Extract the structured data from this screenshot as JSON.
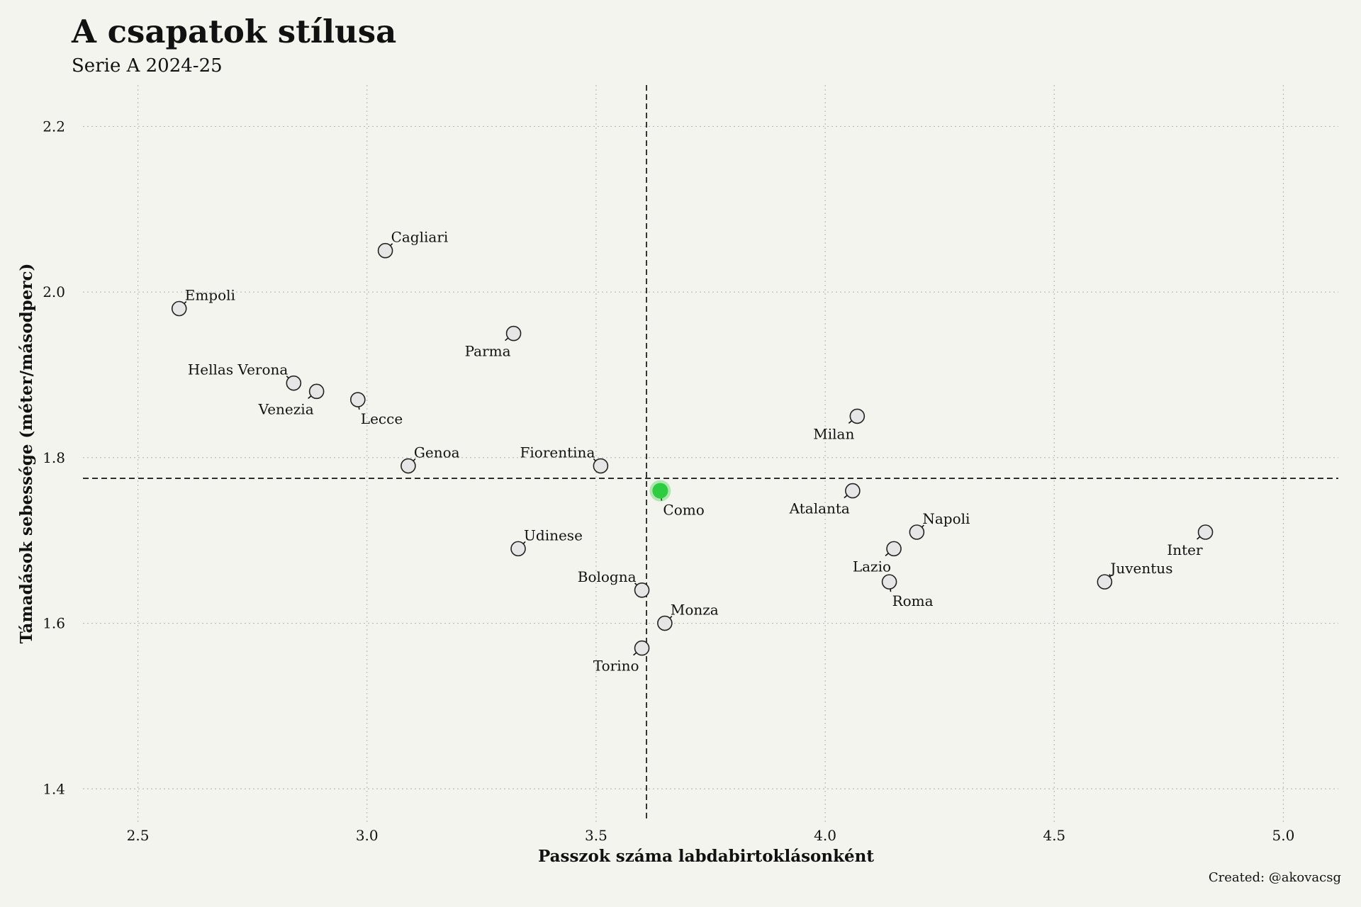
{
  "header": {
    "title": "A csapatok stílusa",
    "subtitle": "Serie A 2024-25"
  },
  "footer": {
    "credit": "Created: @akovacsg"
  },
  "colors": {
    "background": "#f4f4ef",
    "point_fill": "#e6e6e6",
    "point_stroke": "#222222",
    "highlight": "#2ecc40",
    "grid": "#bbbbbb"
  },
  "chart_data": {
    "type": "scatter",
    "title": "A csapatok stílusa",
    "subtitle": "Serie A 2024-25",
    "xlabel": "Passzok száma labdabirtoklásonként",
    "ylabel": "Támadások sebessége (méter/másodperc)",
    "xlim": [
      2.38,
      5.12
    ],
    "ylim": [
      1.36,
      2.25
    ],
    "xticks": [
      "2.5",
      "3.0",
      "3.5",
      "4.0",
      "4.5",
      "5.0"
    ],
    "yticks": [
      "1.4",
      "1.6",
      "1.8",
      "2.0",
      "2.2"
    ],
    "grid": true,
    "reference_lines": {
      "x_mean": 3.61,
      "y_mean": 1.775
    },
    "highlight": "Como",
    "points": [
      {
        "team": "Empoli",
        "x": 2.59,
        "y": 1.98,
        "label_pos": "ne"
      },
      {
        "team": "Cagliari",
        "x": 3.04,
        "y": 2.05,
        "label_pos": "ne"
      },
      {
        "team": "Parma",
        "x": 3.32,
        "y": 1.95,
        "label_pos": "sw"
      },
      {
        "team": "Hellas Verona",
        "x": 2.84,
        "y": 1.89,
        "label_pos": "nw"
      },
      {
        "team": "Venezia",
        "x": 2.89,
        "y": 1.88,
        "label_pos": "sw"
      },
      {
        "team": "Lecce",
        "x": 2.98,
        "y": 1.87,
        "label_pos": "se"
      },
      {
        "team": "Genoa",
        "x": 3.09,
        "y": 1.79,
        "label_pos": "ne"
      },
      {
        "team": "Fiorentina",
        "x": 3.51,
        "y": 1.79,
        "label_pos": "nw"
      },
      {
        "team": "Udinese",
        "x": 3.33,
        "y": 1.69,
        "label_pos": "ne"
      },
      {
        "team": "Bologna",
        "x": 3.6,
        "y": 1.64,
        "label_pos": "nw"
      },
      {
        "team": "Monza",
        "x": 3.65,
        "y": 1.6,
        "label_pos": "ne"
      },
      {
        "team": "Torino",
        "x": 3.6,
        "y": 1.57,
        "label_pos": "sw"
      },
      {
        "team": "Como",
        "x": 3.64,
        "y": 1.76,
        "label_pos": "se"
      },
      {
        "team": "Milan",
        "x": 4.07,
        "y": 1.85,
        "label_pos": "sw"
      },
      {
        "team": "Atalanta",
        "x": 4.06,
        "y": 1.76,
        "label_pos": "sw"
      },
      {
        "team": "Napoli",
        "x": 4.2,
        "y": 1.71,
        "label_pos": "ne"
      },
      {
        "team": "Lazio",
        "x": 4.15,
        "y": 1.69,
        "label_pos": "sw"
      },
      {
        "team": "Roma",
        "x": 4.14,
        "y": 1.65,
        "label_pos": "se"
      },
      {
        "team": "Juventus",
        "x": 4.61,
        "y": 1.65,
        "label_pos": "ne"
      },
      {
        "team": "Inter",
        "x": 4.83,
        "y": 1.71,
        "label_pos": "sw"
      }
    ]
  }
}
